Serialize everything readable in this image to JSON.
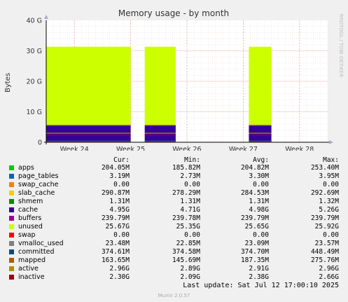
{
  "chart_data": {
    "type": "area",
    "title": "Memory usage - by month",
    "ylabel": "Bytes",
    "side_label": "RRDTOOL / TOBI OETIKER",
    "ylim": [
      0,
      40
    ],
    "y_ticks": [
      {
        "value": 0,
        "label": "0"
      },
      {
        "value": 10,
        "label": "10 G"
      },
      {
        "value": 20,
        "label": "20 G"
      },
      {
        "value": 30,
        "label": "30 G"
      },
      {
        "value": 40,
        "label": "40 G"
      }
    ],
    "x_ticks": [
      "Week 24",
      "Week 25",
      "Week 26",
      "Week 27",
      "Week 28"
    ],
    "x_tick_positions": [
      0.5,
      1.5,
      2.5,
      3.5,
      4.5
    ],
    "xlim": [
      0,
      5
    ],
    "segments": [
      {
        "start": 0.0,
        "end": 1.5
      },
      {
        "start": 1.75,
        "end": 2.3
      },
      {
        "start": 3.6,
        "end": 4.0
      }
    ],
    "stack_values_gb": {
      "apps": 0.2,
      "page_tables": 0.003,
      "swap_cache": 0,
      "slab_cache": 0.28,
      "shmem": 0.001,
      "cache": 4.95,
      "buffers": 0.23,
      "unused": 25.67
    },
    "line_values_gb": {
      "committed": 0.37,
      "mapped": 0.16,
      "active": 2.96,
      "inactive": 2.3
    }
  },
  "legend": {
    "headers": {
      "cur": "Cur:",
      "min": "Min:",
      "avg": "Avg:",
      "max": "Max:"
    },
    "rows": [
      {
        "name": "apps",
        "color": "#00cc00",
        "cur": "204.05M",
        "min": "185.82M",
        "avg": "204.82M",
        "max": "253.40M"
      },
      {
        "name": "page_tables",
        "color": "#0066b3",
        "cur": "3.19M",
        "min": "2.73M",
        "avg": "3.30M",
        "max": "3.95M"
      },
      {
        "name": "swap_cache",
        "color": "#ff8000",
        "cur": "0.00",
        "min": "0.00",
        "avg": "0.00",
        "max": "0.00"
      },
      {
        "name": "slab_cache",
        "color": "#ffcc00",
        "cur": "290.87M",
        "min": "278.29M",
        "avg": "284.53M",
        "max": "292.69M"
      },
      {
        "name": "shmem",
        "color": "#008f00",
        "cur": "1.31M",
        "min": "1.31M",
        "avg": "1.31M",
        "max": "1.32M"
      },
      {
        "name": "cache",
        "color": "#330099",
        "cur": "4.95G",
        "min": "4.71G",
        "avg": "4.98G",
        "max": "5.26G"
      },
      {
        "name": "buffers",
        "color": "#990099",
        "cur": "239.79M",
        "min": "239.78M",
        "avg": "239.79M",
        "max": "239.79M"
      },
      {
        "name": "unused",
        "color": "#ccff00",
        "cur": "25.67G",
        "min": "25.35G",
        "avg": "25.65G",
        "max": "25.92G"
      },
      {
        "name": "swap",
        "color": "#ff0000",
        "cur": "0.00",
        "min": "0.00",
        "avg": "0.00",
        "max": "0.00"
      },
      {
        "name": "vmalloc_used",
        "color": "#808080",
        "cur": "23.48M",
        "min": "22.85M",
        "avg": "23.09M",
        "max": "23.57M"
      },
      {
        "name": "committed",
        "color": "#004d80",
        "cur": "374.61M",
        "min": "374.58M",
        "avg": "374.70M",
        "max": "448.49M"
      },
      {
        "name": "mapped",
        "color": "#b35a00",
        "cur": "163.65M",
        "min": "145.69M",
        "avg": "187.35M",
        "max": "275.76M"
      },
      {
        "name": "active",
        "color": "#b38f00",
        "cur": "2.96G",
        "min": "2.89G",
        "avg": "2.91G",
        "max": "2.96G"
      },
      {
        "name": "inactive",
        "color": "#a00000",
        "cur": "2.30G",
        "min": "2.09G",
        "avg": "2.38G",
        "max": "2.66G"
      }
    ]
  },
  "footer": {
    "last_update": "Last update: Sat Jul 12 17:00:10 2025",
    "version": "Munin 2.0.57"
  }
}
